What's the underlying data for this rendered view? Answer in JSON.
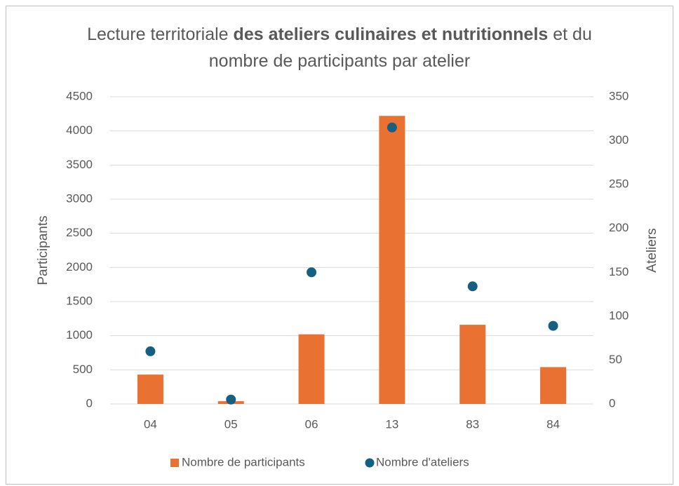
{
  "chart_data": {
    "type": "bar_scatter",
    "title": [
      "Lecture territoriale",
      "des ateliers culinaires et nutritionnels",
      "et du nombre de participants par atelier"
    ],
    "categories": [
      "04",
      "05",
      "06",
      "13",
      "83",
      "84"
    ],
    "series": [
      {
        "name": "Nombre de participants",
        "color": "#E97132",
        "type": "bar",
        "values": [
          430,
          40,
          1020,
          4220,
          1160,
          540
        ]
      },
      {
        "name": "Nombre d'ateliers",
        "color": "#156082",
        "type": "scatter",
        "axis": "y2",
        "values": [
          60,
          5,
          150,
          315,
          134,
          89
        ]
      }
    ],
    "ylabel": "Participants",
    "y2label": "Ateliers",
    "ylim": [
      0,
      4500
    ],
    "yticks": [
      0,
      500,
      1000,
      1500,
      2000,
      2500,
      3000,
      3500,
      4000,
      4500
    ],
    "y2lim": [
      0,
      350
    ],
    "y2ticks": [
      0,
      50,
      100,
      150,
      200,
      250,
      300,
      350
    ],
    "grid": true,
    "legend": "bottom"
  }
}
